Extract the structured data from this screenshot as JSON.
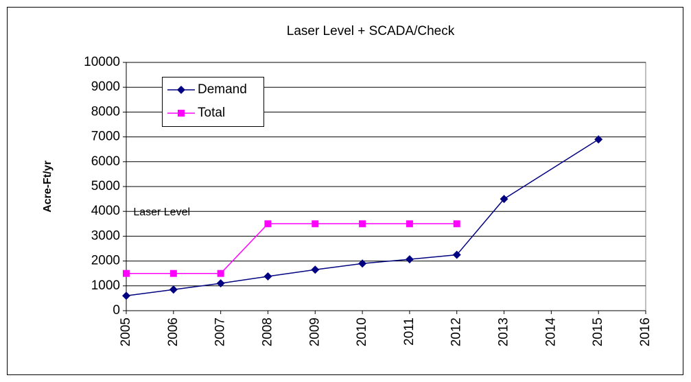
{
  "chart_data": {
    "type": "line",
    "title": "Laser Level + SCADA/Check",
    "y_label": "Acre-Ft/yr",
    "annotation": {
      "text": "Laser Level",
      "x": 2005.15,
      "y": 3950
    },
    "xlim": [
      2005,
      2016
    ],
    "xticks": [
      2005,
      2006,
      2007,
      2008,
      2009,
      2010,
      2011,
      2012,
      2013,
      2014,
      2015,
      2016
    ],
    "ylim": [
      0,
      10000
    ],
    "yticks": [
      0,
      1000,
      2000,
      3000,
      4000,
      5000,
      6000,
      7000,
      8000,
      9000,
      10000
    ],
    "grid": true,
    "legend": "upper left",
    "series": [
      {
        "name": "Demand",
        "color": "#000080",
        "marker": "diamond",
        "x": [
          2005,
          2006,
          2007,
          2008,
          2009,
          2010,
          2011,
          2012,
          2013,
          2015
        ],
        "values": [
          600,
          850,
          1100,
          1380,
          1650,
          1900,
          2070,
          2250,
          4500,
          6900
        ]
      },
      {
        "name": "Total",
        "color": "#ff00ff",
        "marker": "square",
        "x": [
          2005,
          2006,
          2007,
          2008,
          2009,
          2010,
          2011,
          2012
        ],
        "values": [
          1500,
          1500,
          1500,
          3500,
          3500,
          3500,
          3500,
          3500
        ]
      }
    ]
  }
}
